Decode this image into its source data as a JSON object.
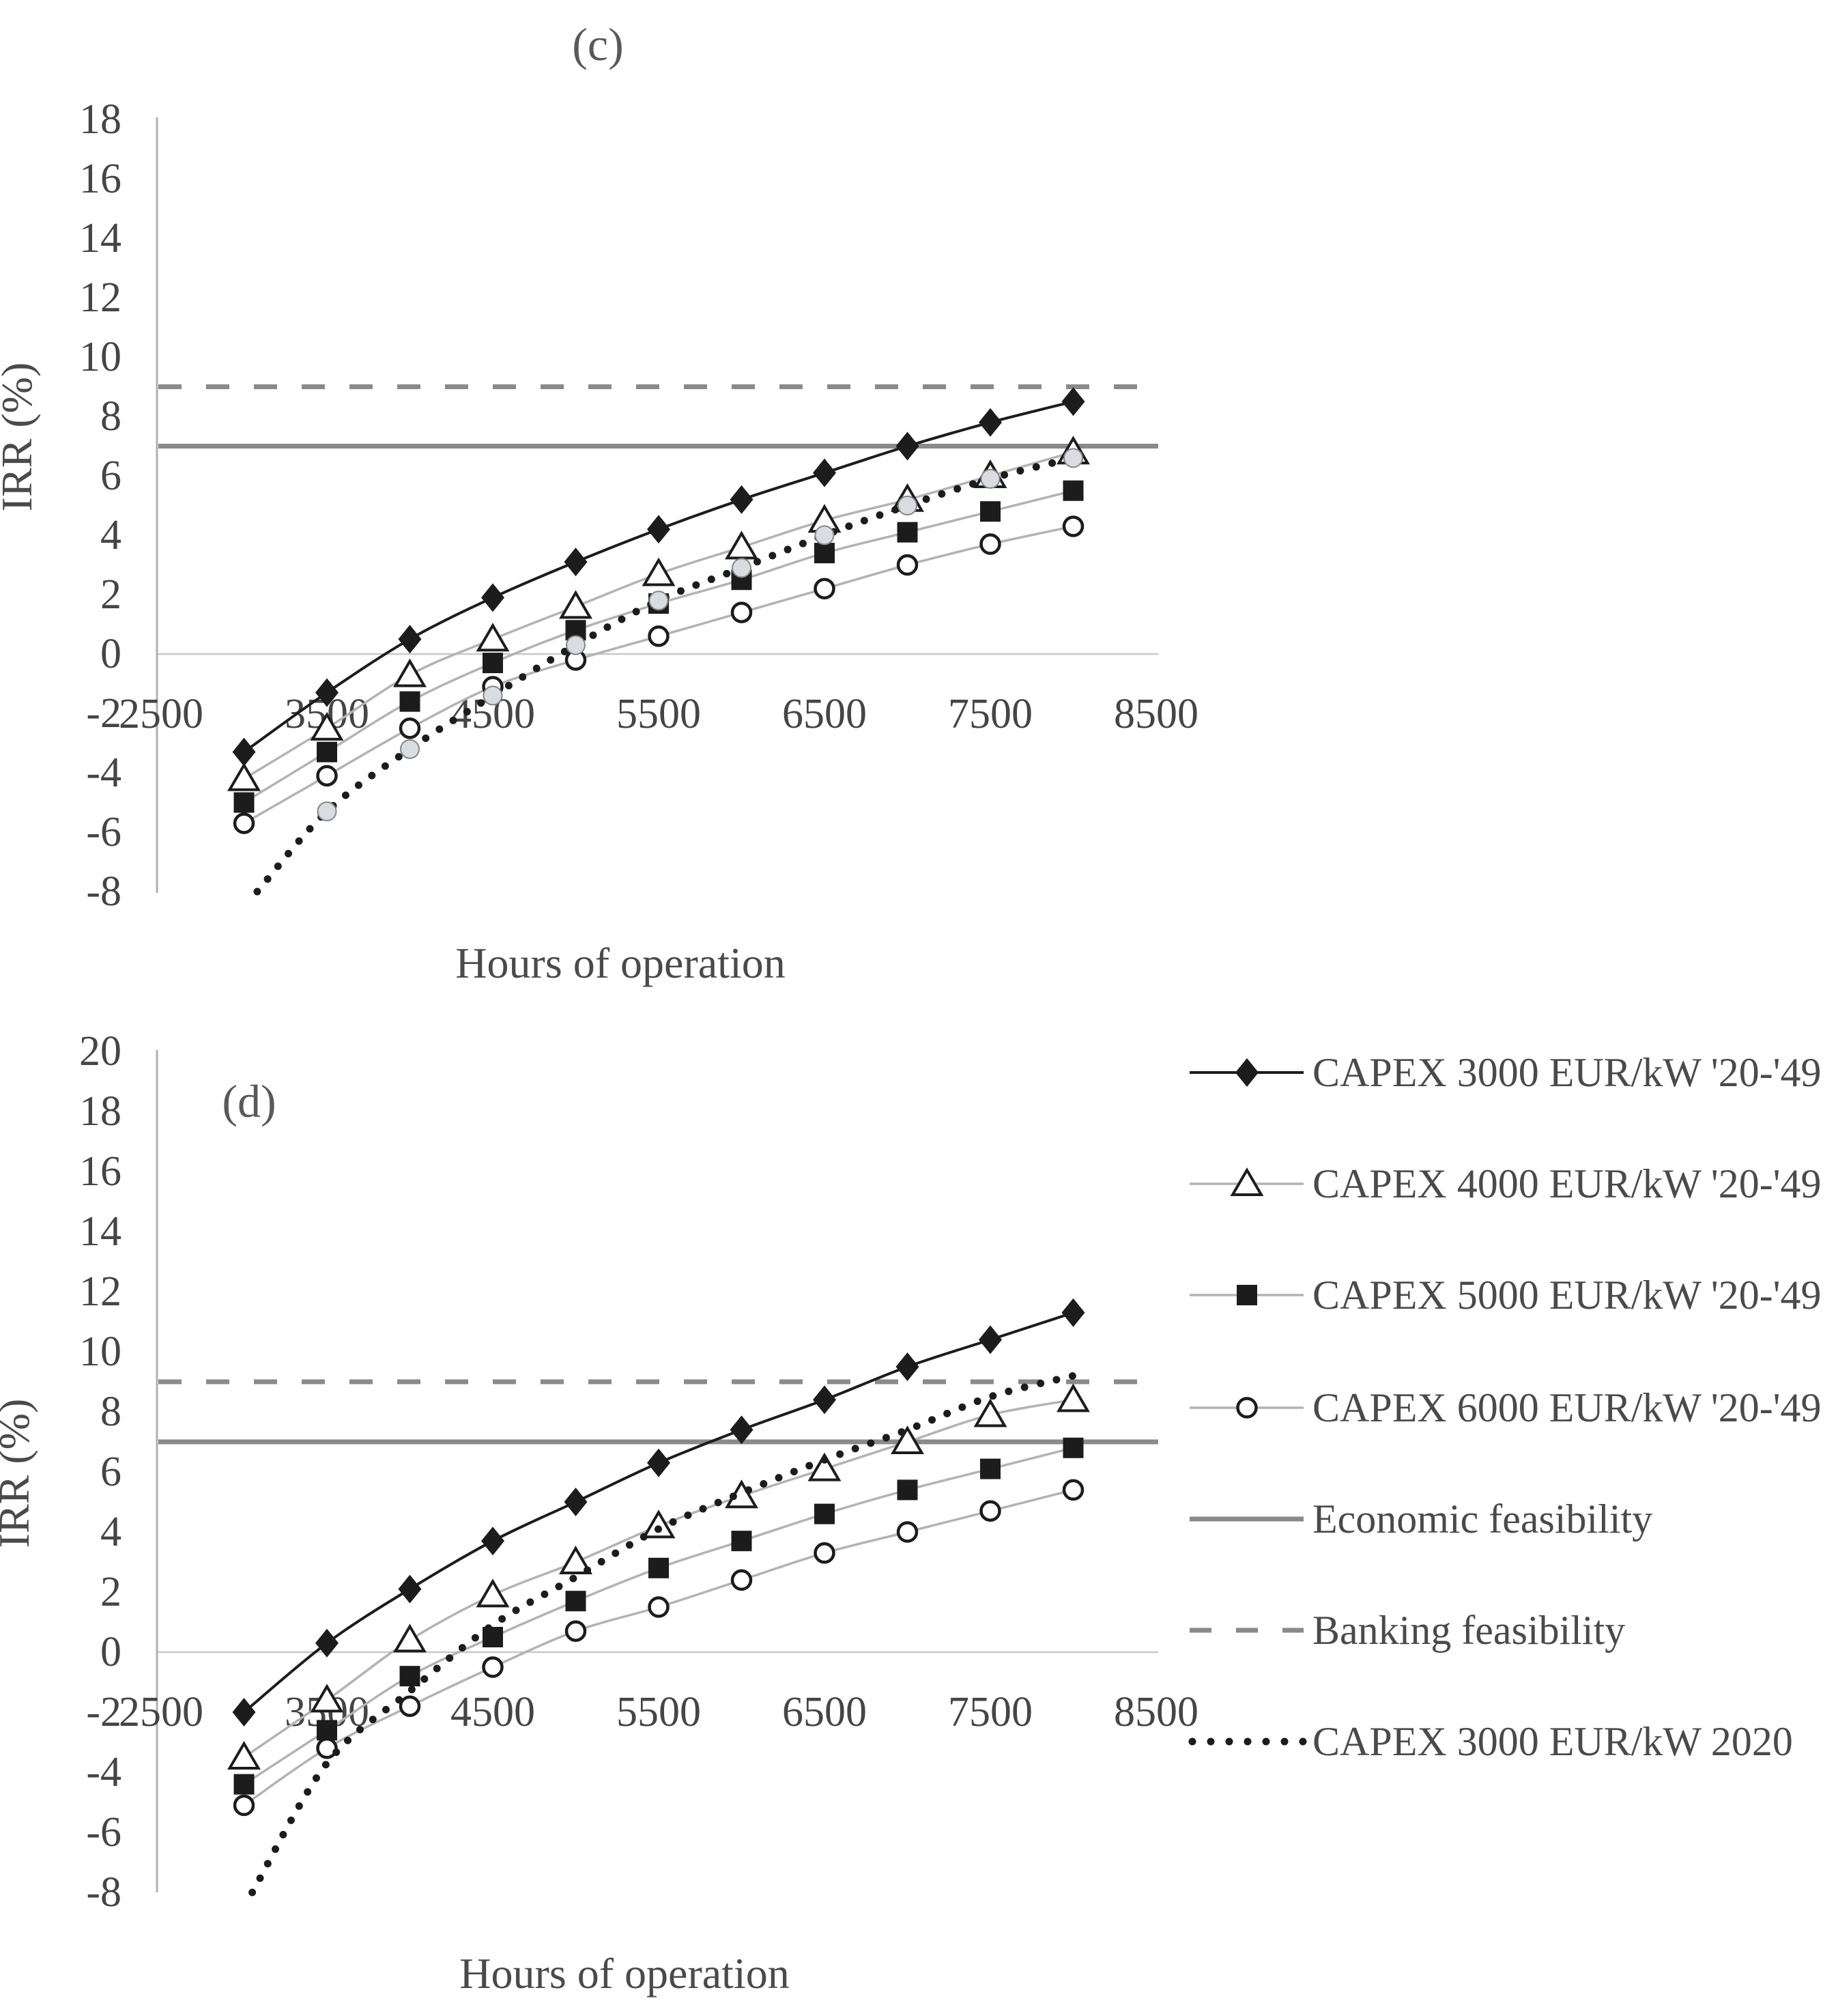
{
  "figure": {
    "panel_c": {
      "title": "(c)",
      "y_axis_title": "IRR (%)",
      "x_axis_title": "Hours of operation"
    },
    "panel_d": {
      "title": "(d)",
      "y_axis_title": "IRR (%)",
      "x_axis_title": "Hours of operation"
    }
  },
  "colors": {
    "black_series": "#1c1c1c",
    "gray_series_line": "#b3b3b3",
    "feasibility_gray": "#8a8a8a",
    "zero_gridline": "#c8c8c8",
    "axis_line": "#b0b0b0",
    "gray_marker_fill": "#d9dde2",
    "gray_marker_stroke": "#82878c",
    "text_gray": "#454545"
  },
  "chart_data": [
    {
      "id": "c",
      "type": "line",
      "title": "(c)",
      "xlabel": "Hours of operation",
      "ylabel": "IRR (%)",
      "xlim": [
        2500,
        8500
      ],
      "ylim": [
        -8,
        18
      ],
      "grid": "zero-line-only",
      "x": [
        3000,
        3500,
        4000,
        4500,
        5000,
        5500,
        6000,
        6500,
        7000,
        7500,
        8000
      ],
      "x_tick_values": [
        2500,
        3500,
        4500,
        5500,
        6500,
        7500,
        8500
      ],
      "x_tick_labels": [
        "2500",
        "3500",
        "4500",
        "5500",
        "6500",
        "7500",
        "8500"
      ],
      "y_ticks": [
        18,
        16,
        14,
        12,
        10,
        8,
        6,
        4,
        2,
        0,
        -2,
        -4,
        -6,
        -8
      ],
      "series": [
        {
          "name": "CAPEX 3000 EUR/kW '20-'49",
          "marker": "diamond",
          "line": "black-solid",
          "values": [
            -3.3,
            -1.3,
            0.5,
            1.9,
            3.1,
            4.2,
            5.2,
            6.1,
            7.0,
            7.8,
            8.5
          ]
        },
        {
          "name": "CAPEX 4000 EUR/kW '20-'49",
          "marker": "triangle",
          "line": "gray-solid",
          "values": [
            -4.2,
            -2.5,
            -0.7,
            0.5,
            1.6,
            2.7,
            3.6,
            4.5,
            5.2,
            6.0,
            6.8
          ]
        },
        {
          "name": "CAPEX 5000 EUR/kW '20-'49",
          "marker": "square",
          "line": "gray-solid",
          "values": [
            -5.0,
            -3.3,
            -1.6,
            -0.3,
            0.8,
            1.7,
            2.5,
            3.4,
            4.1,
            4.8,
            5.5
          ]
        },
        {
          "name": "CAPEX 6000 EUR/kW '20-'49",
          "marker": "circle",
          "line": "gray-solid",
          "values": [
            -5.7,
            -4.1,
            -2.5,
            -1.1,
            -0.2,
            0.6,
            1.4,
            2.2,
            3.0,
            3.7,
            4.3
          ]
        },
        {
          "name": "CAPEX 3000 EUR/kW 2020",
          "marker": "gray-circle",
          "marker_skip_first": true,
          "line": "black-dotted",
          "x": [
            3080,
            3500,
            4000,
            4500,
            5000,
            5500,
            6000,
            6500,
            7000,
            7500,
            8000
          ],
          "values": [
            -8.0,
            -5.3,
            -3.2,
            -1.4,
            0.3,
            1.8,
            2.9,
            4.0,
            5.0,
            5.9,
            6.6
          ]
        },
        {
          "name": "Economic feasibility",
          "type": "hline",
          "value": 7,
          "line": "gray-thick-solid"
        },
        {
          "name": "Banking feasibility",
          "type": "hline",
          "value": 9,
          "line": "gray-thick-dashed"
        }
      ]
    },
    {
      "id": "d",
      "type": "line",
      "title": "(d)",
      "xlabel": "Hours of operation",
      "ylabel": "IRR (%)",
      "xlim": [
        2500,
        8500
      ],
      "ylim": [
        -8,
        20
      ],
      "grid": "zero-line-only",
      "x": [
        3000,
        3500,
        4000,
        4500,
        5000,
        5500,
        6000,
        6500,
        7000,
        7500,
        8000
      ],
      "x_tick_values": [
        2500,
        3500,
        4500,
        5500,
        6500,
        7500,
        8500
      ],
      "x_tick_labels": [
        "2500",
        "3500",
        "4500",
        "5500",
        "6500",
        "7500",
        "8500"
      ],
      "y_ticks": [
        20,
        18,
        16,
        14,
        12,
        10,
        8,
        6,
        4,
        2,
        0,
        -2,
        -4,
        -6,
        -8
      ],
      "series": [
        {
          "name": "CAPEX 3000 EUR/kW '20-'49",
          "marker": "diamond",
          "line": "black-solid",
          "values": [
            -2.0,
            0.3,
            2.1,
            3.7,
            5.0,
            6.3,
            7.4,
            8.4,
            9.5,
            10.4,
            11.3
          ]
        },
        {
          "name": "CAPEX 4000 EUR/kW '20-'49",
          "marker": "triangle",
          "line": "gray-solid",
          "values": [
            -3.5,
            -1.6,
            0.4,
            1.9,
            3.0,
            4.2,
            5.2,
            6.1,
            7.0,
            7.9,
            8.4
          ]
        },
        {
          "name": "CAPEX 5000 EUR/kW '20-'49",
          "marker": "square",
          "line": "gray-solid",
          "values": [
            -4.4,
            -2.6,
            -0.8,
            0.5,
            1.7,
            2.8,
            3.7,
            4.6,
            5.4,
            6.1,
            6.8
          ]
        },
        {
          "name": "CAPEX 6000 EUR/kW '20-'49",
          "marker": "circle",
          "line": "gray-solid",
          "values": [
            -5.1,
            -3.2,
            -1.8,
            -0.5,
            0.7,
            1.5,
            2.4,
            3.3,
            4.0,
            4.7,
            5.4
          ]
        },
        {
          "name": "CAPEX 3000 EUR/kW 2020",
          "marker": "none",
          "line": "black-dotted",
          "x": [
            3050,
            3500,
            4000,
            4500,
            5000,
            5500,
            6000,
            6500,
            7000,
            7500,
            8000
          ],
          "values": [
            -8.0,
            -3.7,
            -1.3,
            0.9,
            2.5,
            4.1,
            5.3,
            6.4,
            7.4,
            8.5,
            9.2
          ]
        },
        {
          "name": "Economic feasibility",
          "type": "hline",
          "value": 7,
          "line": "gray-thick-solid"
        },
        {
          "name": "Banking feasibility",
          "type": "hline",
          "value": 9,
          "line": "gray-thick-dashed"
        }
      ]
    }
  ],
  "legend": {
    "position": "right",
    "items": [
      {
        "label": "CAPEX 3000 EUR/kW '20-'49",
        "sample": "diamond"
      },
      {
        "label": "CAPEX 4000 EUR/kW '20-'49",
        "sample": "triangle"
      },
      {
        "label": "CAPEX 5000 EUR/kW '20-'49",
        "sample": "square"
      },
      {
        "label": "CAPEX 6000 EUR/kW '20-'49",
        "sample": "circle"
      },
      {
        "label": "Economic feasibility",
        "sample": "solid"
      },
      {
        "label": "Banking feasibility",
        "sample": "dashed"
      },
      {
        "label": "CAPEX 3000 EUR/kW 2020",
        "sample": "dotted"
      }
    ]
  }
}
